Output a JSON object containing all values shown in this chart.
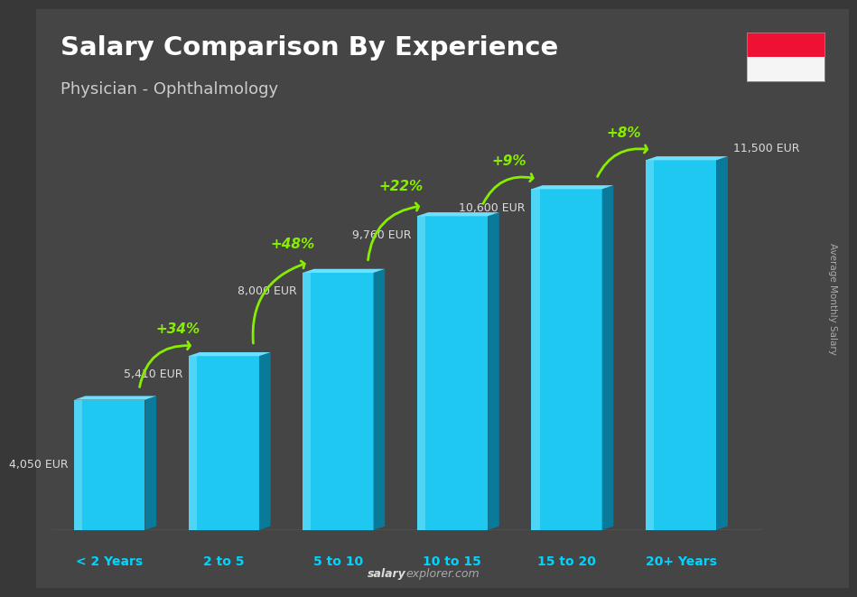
{
  "title": "Salary Comparison By Experience",
  "subtitle": "Physician - Ophthalmology",
  "categories": [
    "< 2 Years",
    "2 to 5",
    "5 to 10",
    "10 to 15",
    "15 to 20",
    "20+ Years"
  ],
  "values": [
    4050,
    5410,
    8000,
    9760,
    10600,
    11500
  ],
  "bar_color_main": "#1EC8F0",
  "bar_color_right": "#0A7A9B",
  "bar_color_top": "#6DDFFF",
  "bar_color_highlight": "#80EEFF",
  "salary_labels": [
    "4,050 EUR",
    "5,410 EUR",
    "8,000 EUR",
    "9,760 EUR",
    "10,600 EUR",
    "11,500 EUR"
  ],
  "pct_labels": [
    "+34%",
    "+48%",
    "+22%",
    "+9%",
    "+8%"
  ],
  "bg_color": "#383838",
  "title_color": "#ffffff",
  "subtitle_color": "#cccccc",
  "label_color": "#dddddd",
  "xlabel_color": "#00D4FF",
  "pct_color": "#88EE00",
  "website_salary": "salary",
  "website_rest": "explorer.com",
  "ylabel_text": "Average Monthly Salary",
  "ylim_max": 13500,
  "flag_red": "#EE1133",
  "flag_white": "#f5f5f5",
  "bar_width": 0.62,
  "side_depth": 0.1
}
